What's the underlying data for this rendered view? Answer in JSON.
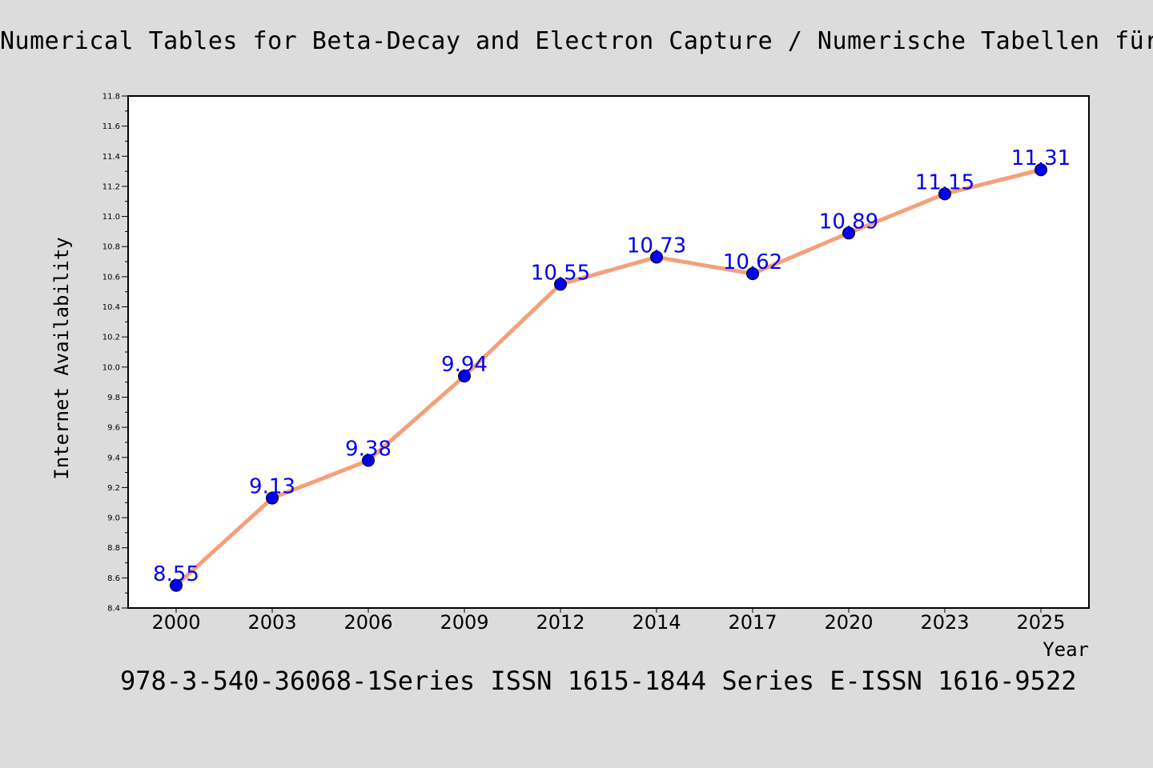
{
  "header": {
    "title": "Numerical Tables for Beta-Decay and Electron Capture / Numerische Tabellen für B"
  },
  "footer": {
    "subtitle": "978-3-540-36068-1Series ISSN 1615-1844 Series E-ISSN 1616-9522"
  },
  "chart_data": {
    "type": "line",
    "title": "Numerical Tables for Beta-Decay and Electron Capture / Numerische Tabellen für B",
    "subtitle": "978-3-540-36068-1Series ISSN 1615-1844 Series E-ISSN 1616-9522",
    "xlabel": "Year",
    "ylabel": "Internet Availability",
    "categories": [
      "2000",
      "2003",
      "2006",
      "2009",
      "2012",
      "2014",
      "2017",
      "2020",
      "2023",
      "2025"
    ],
    "series": [
      {
        "values": [
          8.55,
          9.13,
          9.38,
          9.94,
          10.55,
          10.73,
          10.62,
          10.89,
          11.15,
          11.31
        ],
        "labels": [
          "8.55",
          "9.13",
          "9.38",
          "9.94",
          "10.55",
          "10.73",
          "10.62",
          "10.89",
          "11.15",
          "11.31"
        ],
        "line_color": "#f4a07a",
        "marker_color": "#0000ee",
        "label_color": "#0000ee"
      }
    ],
    "ylim": [
      8.4,
      11.8
    ],
    "yticks": [
      "8.4",
      "8.6",
      "8.8",
      "9.0",
      "9.2",
      "9.4",
      "9.6",
      "9.8",
      "10.0",
      "10.2",
      "10.4",
      "10.6",
      "10.8",
      "11.0",
      "11.2",
      "11.4",
      "11.6",
      "11.8"
    ],
    "grid": false,
    "legend": "none",
    "colors": {
      "background": "#dcdcdc",
      "plot_background": "#ffffff"
    }
  }
}
